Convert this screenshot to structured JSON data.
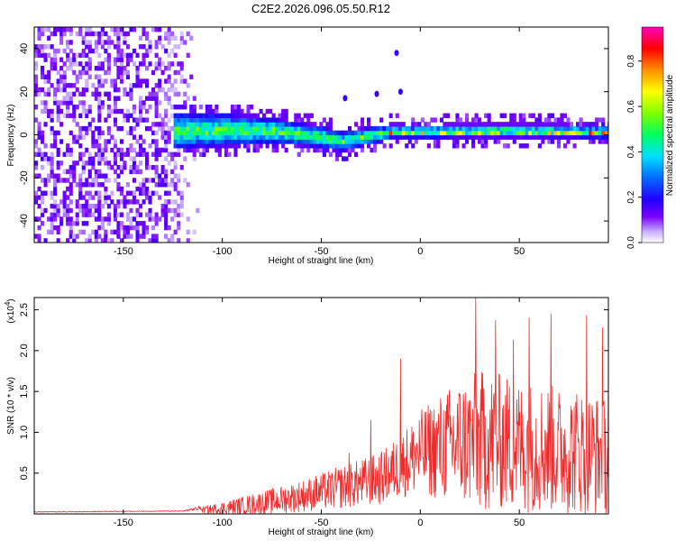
{
  "title": "C2E2.2026.096.05.50.R12",
  "colors": {
    "snr_line": "#ee2a2a",
    "axis": "#000000",
    "background": "#ffffff"
  },
  "chart_data": [
    {
      "type": "heatmap",
      "name": "spectrogram",
      "title": "C2E2.2026.096.05.50.R12",
      "xlabel": "Height of straight line (km)",
      "ylabel": "Frequency (Hz)",
      "xlim": [
        -195,
        95
      ],
      "ylim": [
        -50,
        50
      ],
      "xticks": [
        -150,
        -100,
        -50,
        0,
        50
      ],
      "xtick_labels": [
        "-150",
        "-100",
        "-50",
        "0",
        "50"
      ],
      "yticks": [
        -40,
        -20,
        0,
        20,
        40
      ],
      "ytick_labels": [
        "-40",
        "-20",
        "0",
        "20",
        "40"
      ],
      "colorbar": {
        "label": "Normalized spectral amplitude",
        "range": [
          0,
          0.95
        ],
        "ticks": [
          0.0,
          0.2,
          0.4,
          0.6,
          0.8
        ],
        "tick_labels": [
          "0.0",
          "0.2",
          "0.4",
          "0.6",
          "0.8"
        ],
        "colormap": [
          "#ffffff",
          "#6e00ff",
          "#0000ff",
          "#00ccff",
          "#00ff00",
          "#ffff00",
          "#ff8000",
          "#ff0000",
          "#ff00cc"
        ]
      },
      "features": {
        "broadband_noise_region_km": [
          -195,
          -128
        ],
        "tapering_noise_region_km": [
          -128,
          -112
        ],
        "signal_band_start_km": -125,
        "signal_center_track": [
          [
            -125,
            1
          ],
          [
            -100,
            1.5
          ],
          [
            -75,
            1
          ],
          [
            -50,
            -2
          ],
          [
            -40,
            -4
          ],
          [
            -30,
            -2
          ],
          [
            -15,
            0.5
          ],
          [
            0,
            0.3
          ],
          [
            25,
            0.8
          ],
          [
            50,
            0.8
          ],
          [
            75,
            0.5
          ],
          [
            95,
            0.2
          ]
        ],
        "signal_halfwidth_track": [
          [
            -125,
            9
          ],
          [
            -100,
            8
          ],
          [
            -75,
            6
          ],
          [
            -45,
            5
          ],
          [
            -25,
            4
          ],
          [
            -10,
            3.5
          ],
          [
            50,
            3.5
          ],
          [
            95,
            3.5
          ]
        ],
        "spurious_returns": [
          [
            -10,
            20
          ],
          [
            -22,
            19
          ],
          [
            -38,
            17
          ],
          [
            -12,
            38
          ]
        ]
      }
    },
    {
      "type": "line",
      "name": "snr",
      "xlabel": "Height of straight line (km)",
      "ylabel": "SNR (10 * v/v)",
      "ylabel_multiplier": "(x10",
      "ylabel_multiplier_exp": "4",
      "ylabel_multiplier_close": ")",
      "xlim": [
        -195,
        95
      ],
      "ylim": [
        0,
        2.65
      ],
      "xticks": [
        -150,
        -100,
        -50,
        0,
        50
      ],
      "xtick_labels": [
        "-150",
        "-100",
        "-50",
        "0",
        "50"
      ],
      "yticks": [
        0.5,
        1.0,
        1.5,
        2.0,
        2.5
      ],
      "ytick_labels": [
        "0.5",
        "1.0",
        "1.5",
        "2.0",
        "2.5"
      ],
      "series_description": "noisy SNR trace; ~0.02 below -110 km, rising through 0.1-0.3 near -95 km, 0.3-0.7 near -50 km, 0.5-1.0 near -10 km, 0.8-2.6 from 20 to 95 km",
      "envelope": {
        "x": [
          -195,
          -120,
          -100,
          -80,
          -60,
          -40,
          -20,
          -10,
          0,
          10,
          20,
          30,
          40,
          50,
          60,
          70,
          80,
          90,
          95
        ],
        "base": [
          0.02,
          0.03,
          0.06,
          0.12,
          0.2,
          0.3,
          0.4,
          0.55,
          0.7,
          0.75,
          0.8,
          0.8,
          0.8,
          0.75,
          0.75,
          0.7,
          0.7,
          0.65,
          0.6
        ],
        "amplitude": [
          0.01,
          0.01,
          0.12,
          0.22,
          0.3,
          0.4,
          0.5,
          0.6,
          0.8,
          1.0,
          1.2,
          1.35,
          1.3,
          1.25,
          1.25,
          1.2,
          1.2,
          1.15,
          1.1
        ]
      },
      "peaks": [
        [
          -10,
          1.9
        ],
        [
          -25,
          1.15
        ],
        [
          -36,
          0.75
        ],
        [
          28,
          2.65
        ],
        [
          38,
          2.37
        ],
        [
          47,
          2.13
        ],
        [
          55,
          2.4
        ],
        [
          66,
          2.45
        ],
        [
          84,
          2.43
        ],
        [
          92,
          2.28
        ],
        [
          95,
          2.1
        ]
      ]
    }
  ]
}
